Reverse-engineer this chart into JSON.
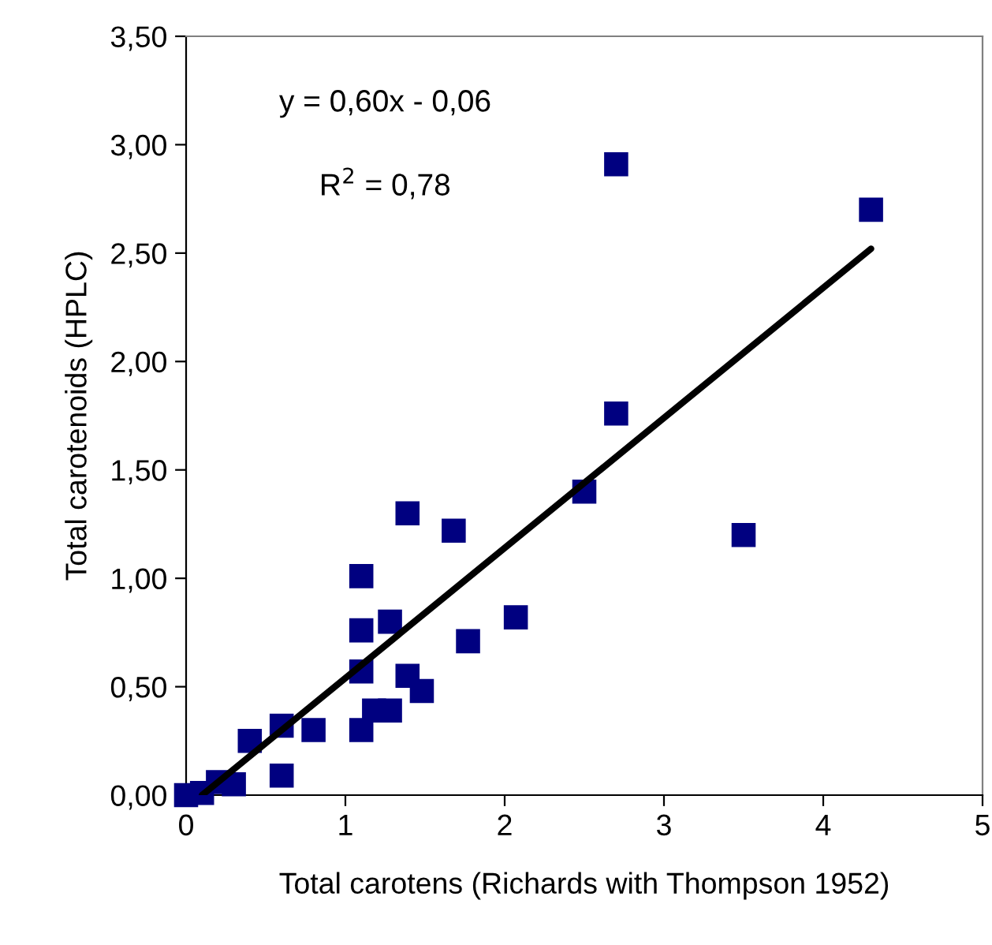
{
  "chart_data": {
    "type": "scatter",
    "xlabel": "Total carotens (Richards with Thompson 1952)",
    "ylabel": "Total carotenoids (HPLC)",
    "annotations": [
      "y = 0,60x - 0,06",
      "R$^{2}$ = 0,78"
    ],
    "marker": "square",
    "grid": false,
    "xlim": [
      0,
      5
    ],
    "xticks": [
      0,
      1,
      2,
      3,
      4,
      5
    ],
    "ylim": [
      0,
      3.5
    ],
    "yticks": [
      {
        "value": 0,
        "label": "0,00"
      },
      {
        "value": 0.5,
        "label": "0,50"
      },
      {
        "value": 1,
        "label": "1,00"
      },
      {
        "value": 1.5,
        "label": "1,50"
      },
      {
        "value": 2,
        "label": "2,00"
      },
      {
        "value": 2.5,
        "label": "2,50"
      },
      {
        "value": 3,
        "label": "3,00"
      },
      {
        "value": 3.5,
        "label": "3,50"
      }
    ],
    "series": [
      {
        "color": "#000080",
        "x": [
          0,
          0.1,
          0.2,
          0.3,
          0.4,
          0.6,
          0.6,
          0.8,
          1.1,
          1.1,
          1.1,
          1.1,
          1.18,
          1.28,
          1.28,
          1.39,
          1.39,
          1.48,
          1.68,
          1.77,
          2.07,
          2.5,
          2.7,
          2.7,
          3.5,
          4.3
        ],
        "values": [
          0,
          0.01,
          0.06,
          0.05,
          0.25,
          0.32,
          0.09,
          0.3,
          1.01,
          0.76,
          0.57,
          0.3,
          0.39,
          0.39,
          0.8,
          1.3,
          0.55,
          0.48,
          1.22,
          0.71,
          0.82,
          1.4,
          1.76,
          2.91,
          1.2,
          2.7
        ]
      },
      {
        "type": "line",
        "color": "#000000",
        "marker": "none",
        "x": [
          0.1,
          4.3
        ],
        "values": [
          0,
          2.52
        ]
      }
    ]
  }
}
